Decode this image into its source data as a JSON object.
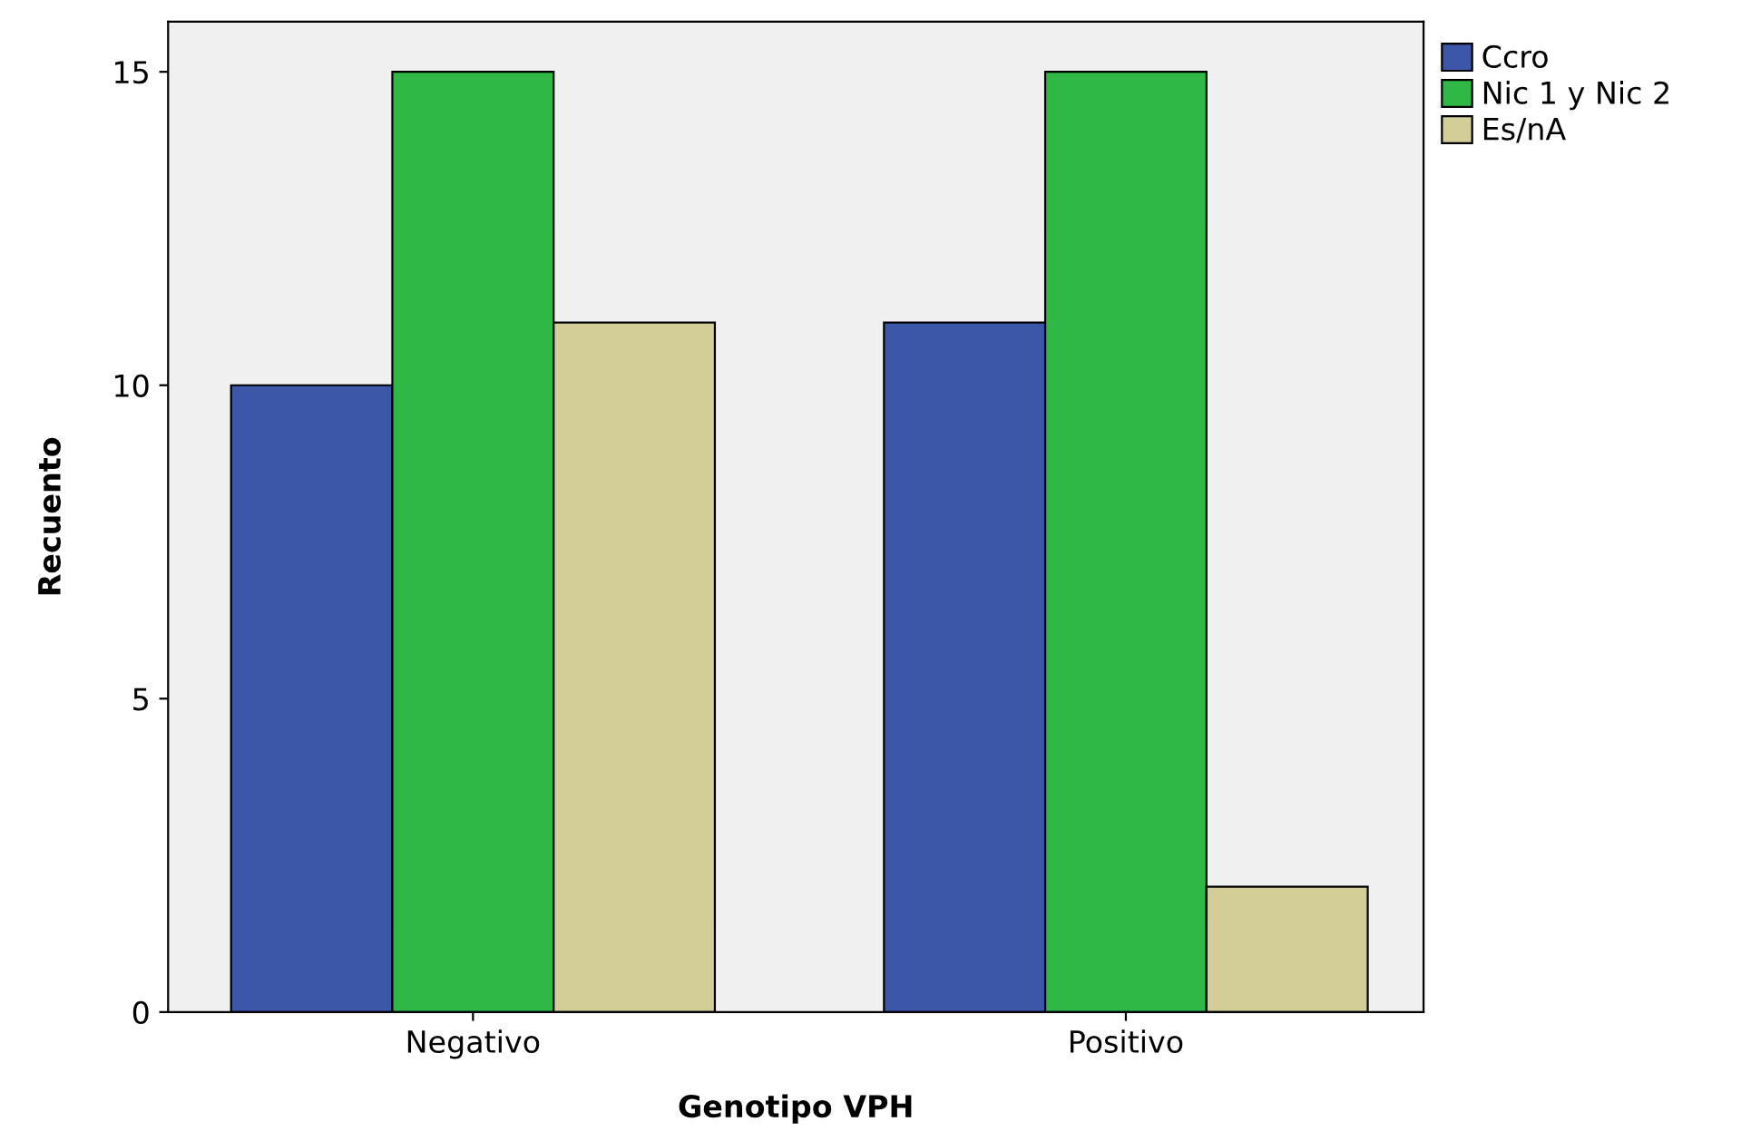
{
  "chart_data": {
    "type": "bar",
    "xlabel": "Genotipo VPH",
    "ylabel": "Recuento",
    "categories": [
      "Negativo",
      "Positivo"
    ],
    "series": [
      {
        "name": "Ccro",
        "color": "#3c57a8",
        "values": [
          10,
          11
        ]
      },
      {
        "name": "Nic 1 y Nic 2",
        "color": "#2fb845",
        "values": [
          15,
          15
        ]
      },
      {
        "name": "Es/nA",
        "color": "#d3cd98",
        "values": [
          11,
          2
        ]
      }
    ],
    "ylim": [
      0,
      15.8
    ],
    "yticks": [
      0,
      5,
      10,
      15
    ],
    "grid": false,
    "legend": "top right"
  }
}
